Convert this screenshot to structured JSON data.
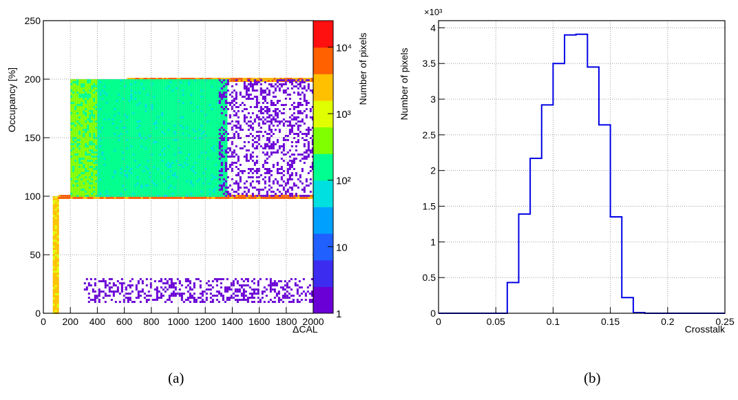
{
  "chart_data": [
    {
      "panel_label": "(a)",
      "type": "heatmap",
      "xlabel": "ΔCAL",
      "ylabel": "Occupancy [%]",
      "zlabel": "Number of pixels",
      "xlim": [
        0,
        2000
      ],
      "ylim": [
        0,
        250
      ],
      "zlim": [
        1,
        25000
      ],
      "z_log_scale": true,
      "grid": true,
      "x_ticks": [
        "0",
        "200",
        "400",
        "600",
        "800",
        "1000",
        "1200",
        "1400",
        "1600",
        "1800",
        "2000"
      ],
      "y_ticks": [
        "0",
        "50",
        "100",
        "150",
        "200",
        "250"
      ],
      "z_ticks": [
        "1",
        "10",
        "10²",
        "10³",
        "10⁴"
      ],
      "colormap": [
        "#6a00d6",
        "#3c2cf0",
        "#2060ff",
        "#00a0ff",
        "#00e0e0",
        "#00ff90",
        "#80ff00",
        "#e0ff00",
        "#ffc000",
        "#ff6000",
        "#ff1010"
      ],
      "regions": [
        {
          "description": "step",
          "x": [
            70,
            110
          ],
          "y": [
            0,
            100
          ],
          "counts": 2000
        },
        {
          "description": "plateau",
          "x": [
            110,
            2000
          ],
          "y": [
            100,
            100
          ],
          "counts": 5000
        },
        {
          "description": "ramp",
          "x": [
            200,
            620
          ],
          "y": [
            100,
            200
          ],
          "counts": 300
        },
        {
          "description": "upper plateau",
          "x": [
            620,
            2000
          ],
          "y": [
            200,
            200
          ],
          "counts": 4000
        },
        {
          "description": "band",
          "x": [
            400,
            1350
          ],
          "y": [
            100,
            200
          ],
          "counts": 150
        },
        {
          "description": "scatter",
          "x": [
            1300,
            2000
          ],
          "y": [
            100,
            200
          ],
          "counts": 2
        },
        {
          "description": "low band",
          "x": [
            300,
            2000
          ],
          "y": [
            10,
            30
          ],
          "counts": 1
        }
      ]
    },
    {
      "panel_label": "(b)",
      "type": "bar",
      "histogram": true,
      "xlabel": "Crosstalk",
      "ylabel": "Number of pixels",
      "y_multiplier": "×10³",
      "xlim": [
        0,
        0.25
      ],
      "ylim": [
        0,
        4.1
      ],
      "grid": true,
      "x_ticks": [
        "0",
        "0.05",
        "0.1",
        "0.15",
        "0.2",
        "0.25"
      ],
      "y_ticks": [
        "0",
        "0.5",
        "1",
        "1.5",
        "2",
        "2.5",
        "3",
        "3.5",
        "4"
      ],
      "bin_edges": [
        0.0,
        0.01,
        0.02,
        0.03,
        0.04,
        0.05,
        0.06,
        0.07,
        0.08,
        0.09,
        0.1,
        0.11,
        0.12,
        0.13,
        0.14,
        0.15,
        0.16,
        0.17,
        0.18,
        0.19,
        0.2,
        0.21,
        0.22,
        0.23,
        0.24,
        0.25
      ],
      "values": [
        0,
        0,
        0,
        0,
        0,
        0,
        0.43,
        1.39,
        2.17,
        2.92,
        3.5,
        3.9,
        3.91,
        3.45,
        2.64,
        1.35,
        0.22,
        0.01,
        0,
        0,
        0,
        0,
        0,
        0,
        0
      ],
      "line_color": "#0000e6"
    }
  ]
}
